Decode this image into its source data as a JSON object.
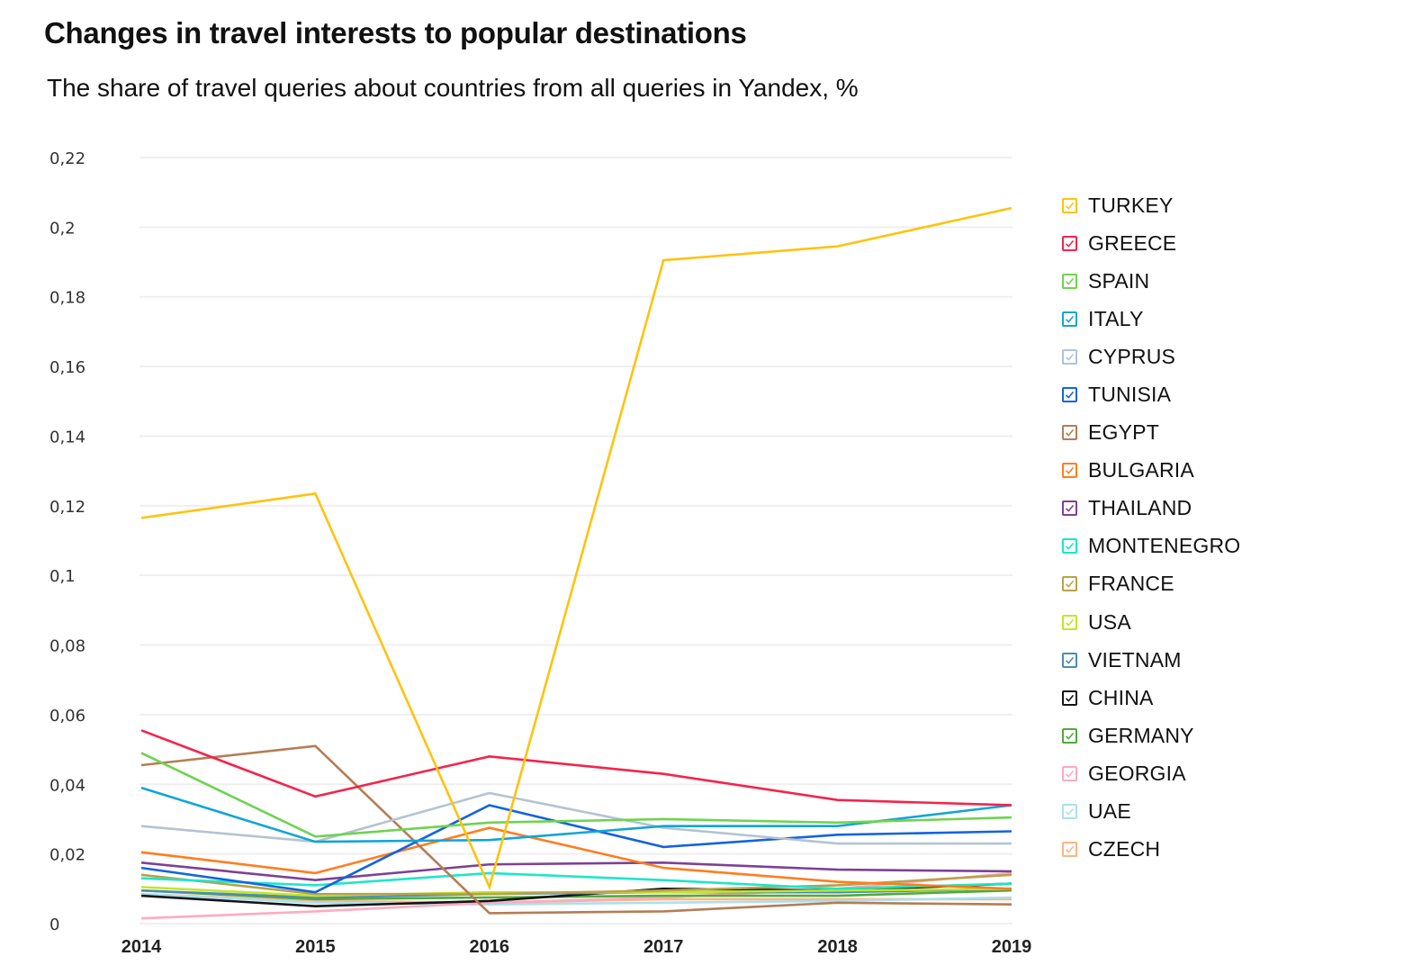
{
  "header": {
    "title": "Changes in travel interests to popular destinations",
    "subtitle": "The share of travel queries about countries from all queries in Yandex, %"
  },
  "chart_data": {
    "type": "line",
    "title": "Changes in travel interests to popular destinations",
    "subtitle": "The share of travel queries about countries from all queries in Yandex, %",
    "xlabel": "",
    "ylabel": "",
    "x": [
      "2014",
      "2015",
      "2016",
      "2017",
      "2018",
      "2019"
    ],
    "ylim": [
      0,
      0.22
    ],
    "yticks": [
      0,
      0.02,
      0.04,
      0.06,
      0.08,
      0.1,
      0.12,
      0.14,
      0.16,
      0.18,
      0.2,
      0.22
    ],
    "ytick_labels": [
      "0",
      "0,02",
      "0,04",
      "0,06",
      "0,08",
      "0,1",
      "0,12",
      "0,14",
      "0,16",
      "0,18",
      "0,2",
      "0,22"
    ],
    "grid": true,
    "legend_position": "right",
    "series": [
      {
        "name": "TURKEY",
        "color": "#ffc20e",
        "values": [
          0.1165,
          0.1235,
          0.0105,
          0.1905,
          0.1945,
          0.2055
        ]
      },
      {
        "name": "GREECE",
        "color": "#f5234b",
        "values": [
          0.0555,
          0.0365,
          0.048,
          0.043,
          0.0355,
          0.034
        ]
      },
      {
        "name": "SPAIN",
        "color": "#6ed350",
        "values": [
          0.049,
          0.025,
          0.029,
          0.03,
          0.029,
          0.0305
        ]
      },
      {
        "name": "ITALY",
        "color": "#12a5d4",
        "values": [
          0.039,
          0.0235,
          0.024,
          0.028,
          0.028,
          0.034
        ]
      },
      {
        "name": "CYPRUS",
        "color": "#b4c3d2",
        "values": [
          0.028,
          0.0235,
          0.0375,
          0.0275,
          0.023,
          0.023
        ]
      },
      {
        "name": "TUNISIA",
        "color": "#1464dc",
        "values": [
          0.016,
          0.009,
          0.034,
          0.022,
          0.0255,
          0.0265
        ]
      },
      {
        "name": "EGYPT",
        "color": "#b47d55",
        "values": [
          0.0455,
          0.051,
          0.003,
          0.0035,
          0.006,
          0.0055
        ]
      },
      {
        "name": "BULGARIA",
        "color": "#ff7d1e",
        "values": [
          0.0205,
          0.0145,
          0.0275,
          0.016,
          0.012,
          0.01
        ]
      },
      {
        "name": "THAILAND",
        "color": "#7d4196",
        "values": [
          0.0175,
          0.0125,
          0.017,
          0.0175,
          0.0155,
          0.015
        ]
      },
      {
        "name": "MONTENEGRO",
        "color": "#1ee6c8",
        "values": [
          0.013,
          0.011,
          0.0145,
          0.0125,
          0.01,
          0.0115
        ]
      },
      {
        "name": "FRANCE",
        "color": "#b9a14b",
        "values": [
          0.014,
          0.0085,
          0.0085,
          0.0095,
          0.011,
          0.014
        ]
      },
      {
        "name": "USA",
        "color": "#c3e628",
        "values": [
          0.0105,
          0.008,
          0.009,
          0.009,
          0.0095,
          0.01
        ]
      },
      {
        "name": "VIETNAM",
        "color": "#4b8cb4",
        "values": [
          0.0095,
          0.0075,
          0.0085,
          0.009,
          0.009,
          0.01
        ]
      },
      {
        "name": "CHINA",
        "color": "#141414",
        "values": [
          0.008,
          0.005,
          0.0065,
          0.01,
          0.0095,
          0.0115
        ]
      },
      {
        "name": "GERMANY",
        "color": "#50aa3c",
        "values": [
          0.0095,
          0.007,
          0.0075,
          0.008,
          0.008,
          0.0095
        ]
      },
      {
        "name": "GEORGIA",
        "color": "#ffaabe",
        "values": [
          0.0015,
          0.0035,
          0.006,
          0.0075,
          0.01,
          0.0145
        ]
      },
      {
        "name": "UAE",
        "color": "#aae1f0",
        "values": [
          0.0085,
          0.006,
          0.0055,
          0.006,
          0.0065,
          0.0075
        ]
      },
      {
        "name": "CZECH",
        "color": "#ffb482",
        "values": [
          0.0085,
          0.0065,
          0.006,
          0.007,
          0.007,
          0.007
        ]
      }
    ]
  }
}
